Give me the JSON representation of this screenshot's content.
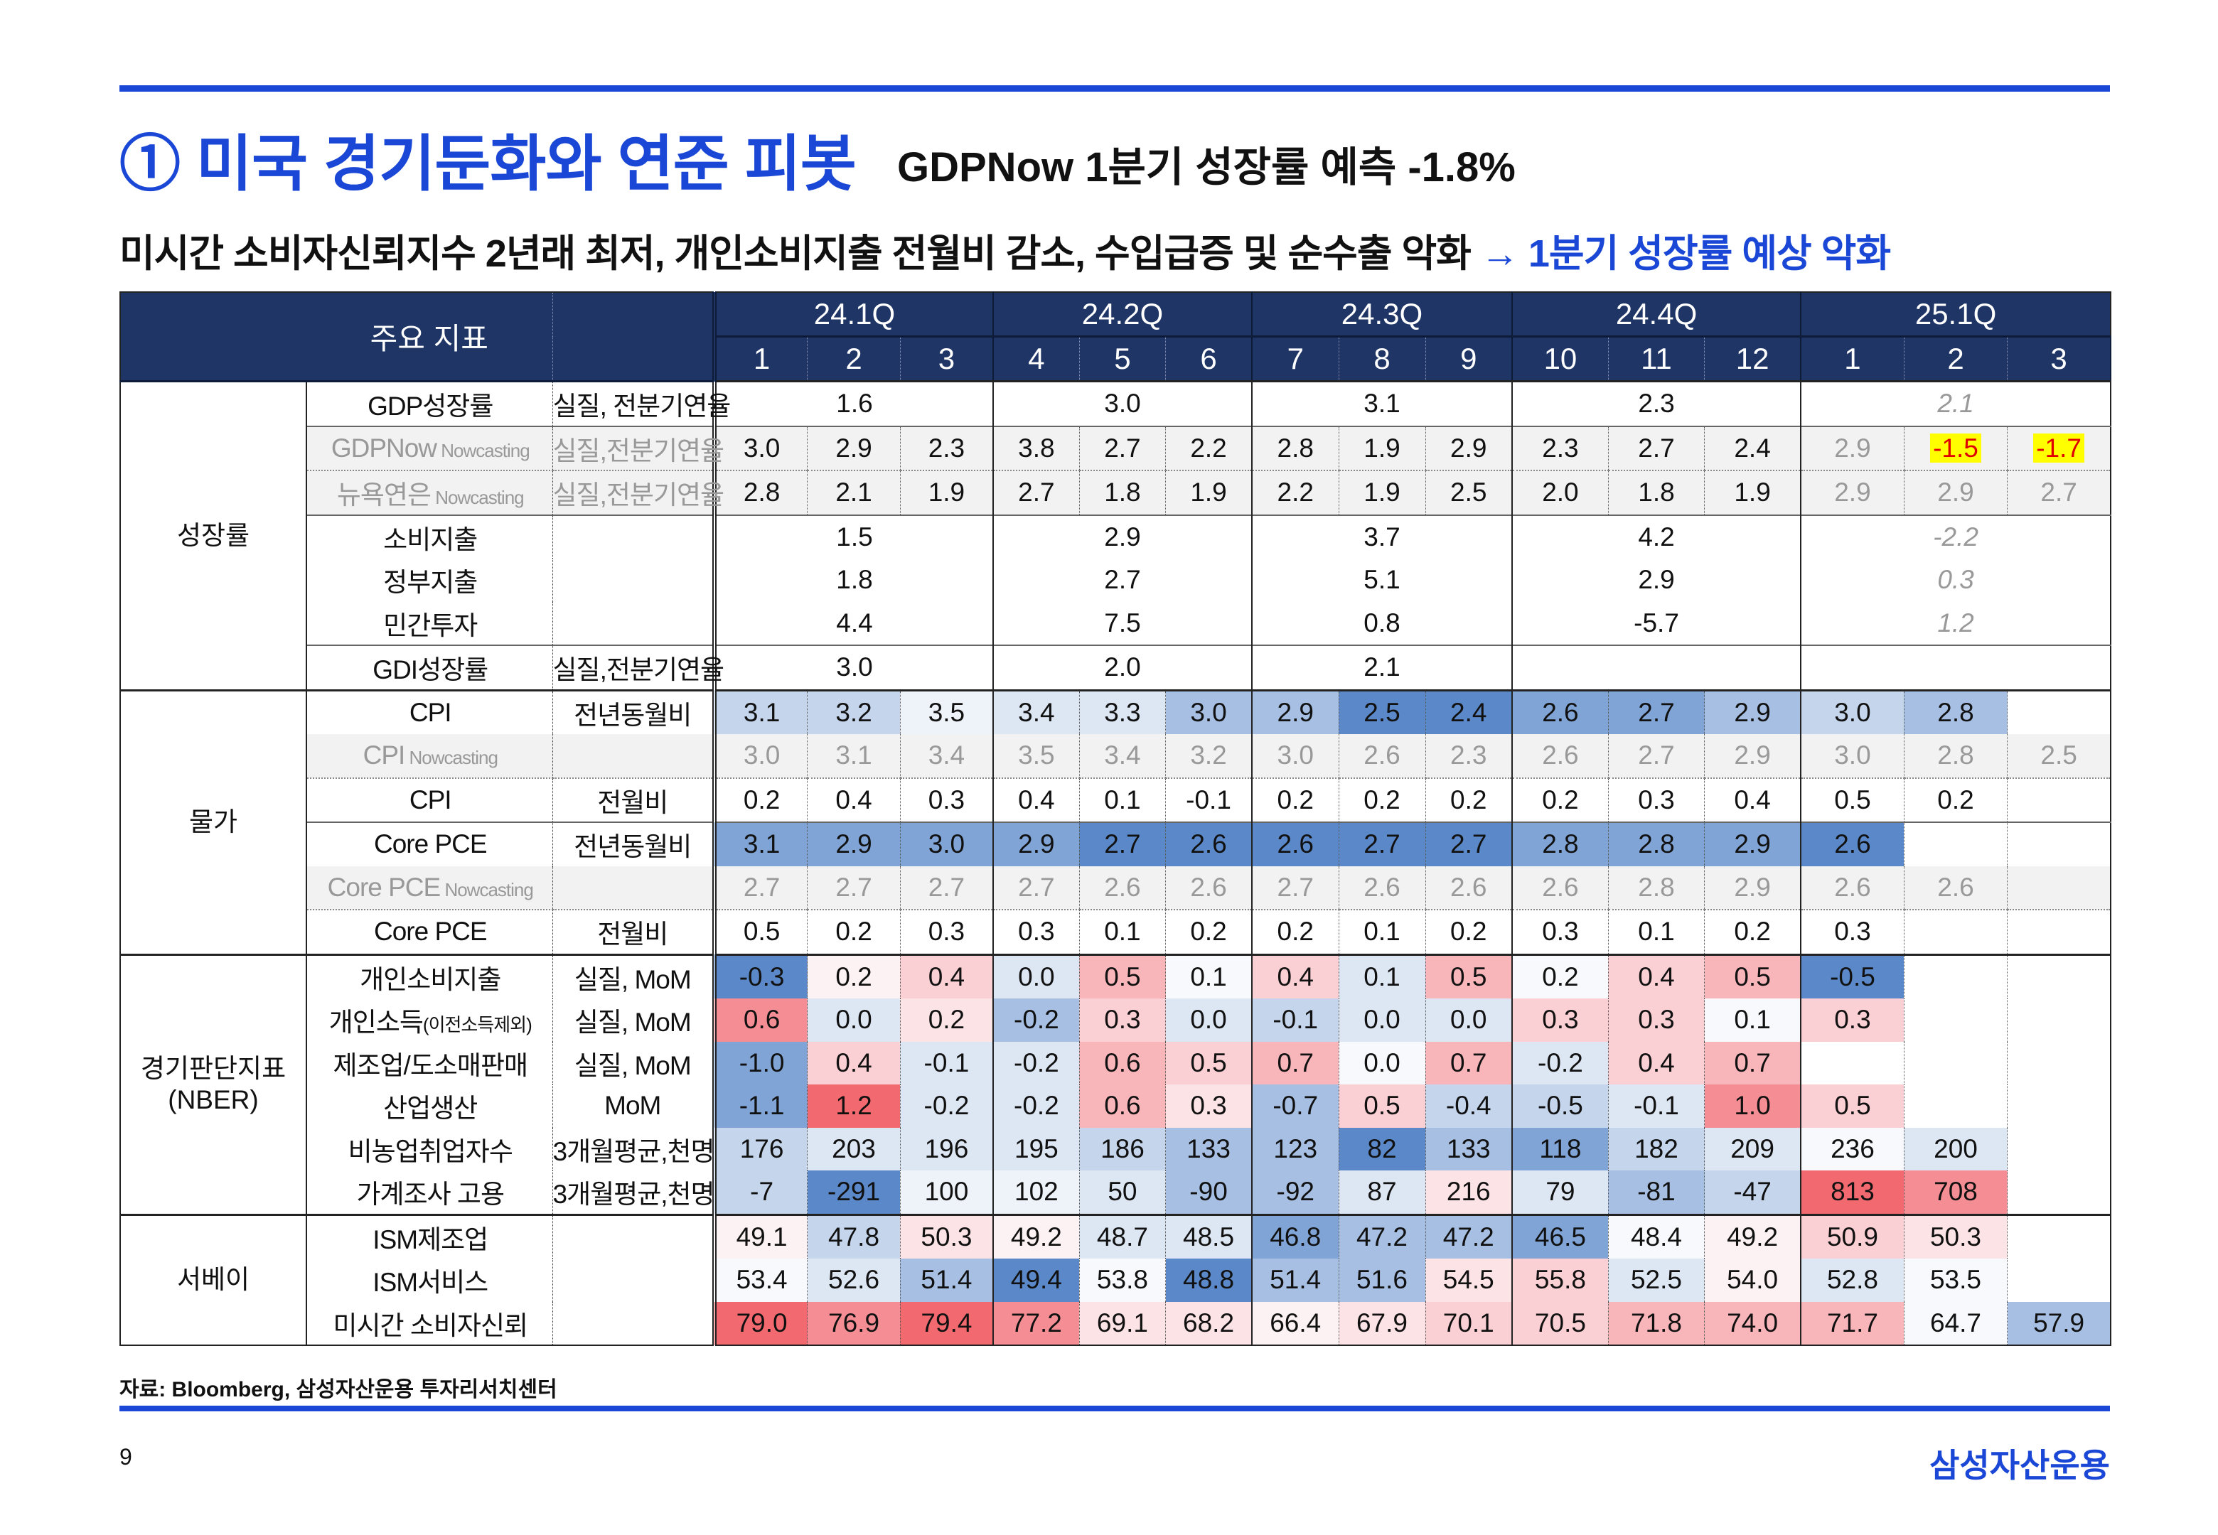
{
  "header": {
    "title": "① 미국 경기둔화와 연준 피봇",
    "subtitle": "GDPNow 1분기 성장률 예측 -1.8%",
    "headline_main": "미시간 소비자신뢰지수 2년래 최저, 개인소비지출 전월비 감소, 수입급증 및 순수출 악화 ",
    "headline_highlight": "→ 1분기 성장률 예상 악화"
  },
  "table": {
    "col_header": "주요 지표",
    "quarters": [
      "24.1Q",
      "24.2Q",
      "24.3Q",
      "24.4Q",
      "25.1Q"
    ],
    "months": [
      "1",
      "2",
      "3",
      "4",
      "5",
      "6",
      "7",
      "8",
      "9",
      "10",
      "11",
      "12",
      "1",
      "2",
      "3"
    ],
    "sections": [
      {
        "label": "성장률",
        "rows": [
          {
            "name": "GDP성장률",
            "unit": "실질, 전분기연율",
            "type": "quarterly",
            "values": [
              "1.6",
              "3.0",
              "3.1",
              "2.3",
              "2.1"
            ],
            "italic_last": true
          },
          {
            "name": "GDPNow",
            "name_small": " Nowcasting",
            "unit": "실질,전분기연율",
            "type": "monthly",
            "nowcast": true,
            "muted_from": 12,
            "values": [
              "3.0",
              "2.9",
              "2.3",
              "3.8",
              "2.7",
              "2.2",
              "2.8",
              "1.9",
              "2.9",
              "2.3",
              "2.7",
              "2.4",
              "2.9",
              "-1.5",
              "-1.7"
            ],
            "highlight": [
              13,
              14
            ]
          },
          {
            "name": "뉴욕연은",
            "name_small": " Nowcasting",
            "unit": "실질,전분기연율",
            "type": "monthly",
            "nowcast": true,
            "muted_from": 12,
            "values": [
              "2.8",
              "2.1",
              "1.9",
              "2.7",
              "1.8",
              "1.9",
              "2.2",
              "1.9",
              "2.5",
              "2.0",
              "1.8",
              "1.9",
              "2.9",
              "2.9",
              "2.7"
            ]
          },
          {
            "name": "소비지출",
            "unit": "",
            "type": "quarterly",
            "values": [
              "1.5",
              "2.9",
              "3.7",
              "4.2",
              "-2.2"
            ],
            "italic_last": true
          },
          {
            "name": "정부지출",
            "unit": "",
            "type": "quarterly",
            "values": [
              "1.8",
              "2.7",
              "5.1",
              "2.9",
              "0.3"
            ],
            "italic_last": true
          },
          {
            "name": "민간투자",
            "unit": "",
            "type": "quarterly",
            "values": [
              "4.4",
              "7.5",
              "0.8",
              "-5.7",
              "1.2"
            ],
            "italic_last": true
          },
          {
            "name": "GDI성장률",
            "unit": "실질,전분기연율",
            "type": "quarterly",
            "values": [
              "3.0",
              "2.0",
              "2.1",
              "",
              ""
            ]
          }
        ]
      },
      {
        "label": "물가",
        "rows": [
          {
            "name": "CPI",
            "unit": "전년동월비",
            "type": "monthly",
            "values": [
              "3.1",
              "3.2",
              "3.5",
              "3.4",
              "3.3",
              "3.0",
              "2.9",
              "2.5",
              "2.4",
              "2.6",
              "2.7",
              "2.9",
              "3.0",
              "2.8",
              ""
            ],
            "shades": [
              "b2",
              "b2",
              "b0",
              "b1",
              "b1",
              "b3",
              "b3",
              "b5",
              "b5",
              "b4",
              "b4",
              "b3",
              "b2",
              "b3",
              ""
            ]
          },
          {
            "name": "CPI",
            "name_small": " Nowcasting",
            "unit": "",
            "type": "monthly",
            "nowcast": true,
            "muted_from": 0,
            "values": [
              "3.0",
              "3.1",
              "3.4",
              "3.5",
              "3.4",
              "3.2",
              "3.0",
              "2.6",
              "2.3",
              "2.6",
              "2.7",
              "2.9",
              "3.0",
              "2.8",
              "2.5"
            ]
          },
          {
            "name": "CPI",
            "unit": "전월비",
            "type": "monthly",
            "values": [
              "0.2",
              "0.4",
              "0.3",
              "0.4",
              "0.1",
              "-0.1",
              "0.2",
              "0.2",
              "0.2",
              "0.2",
              "0.3",
              "0.4",
              "0.5",
              "0.2",
              ""
            ]
          },
          {
            "name": "Core PCE",
            "unit": "전년동월비",
            "type": "monthly",
            "values": [
              "3.1",
              "2.9",
              "3.0",
              "2.9",
              "2.7",
              "2.6",
              "2.6",
              "2.7",
              "2.7",
              "2.8",
              "2.8",
              "2.9",
              "2.6",
              "",
              ""
            ],
            "shades": [
              "b4",
              "b4",
              "b4",
              "b4",
              "b5",
              "b5",
              "b5",
              "b5",
              "b5",
              "b4",
              "b4",
              "b4",
              "b5",
              "",
              ""
            ]
          },
          {
            "name": "Core PCE",
            "name_small": " Nowcasting",
            "unit": "",
            "type": "monthly",
            "nowcast": true,
            "muted_from": 0,
            "values": [
              "2.7",
              "2.7",
              "2.7",
              "2.7",
              "2.6",
              "2.6",
              "2.7",
              "2.6",
              "2.6",
              "2.6",
              "2.8",
              "2.9",
              "2.6",
              "2.6",
              ""
            ]
          },
          {
            "name": "Core PCE",
            "unit": "전월비",
            "type": "monthly",
            "values": [
              "0.5",
              "0.2",
              "0.3",
              "0.3",
              "0.1",
              "0.2",
              "0.2",
              "0.1",
              "0.2",
              "0.3",
              "0.1",
              "0.2",
              "0.3",
              "",
              ""
            ]
          }
        ]
      },
      {
        "label": "경기판단지표",
        "label2": "(NBER)",
        "rows": [
          {
            "name": "개인소비지출",
            "unit": "실질, MoM",
            "type": "monthly",
            "values": [
              "-0.3",
              "0.2",
              "0.4",
              "0.0",
              "0.5",
              "0.1",
              "0.4",
              "0.1",
              "0.5",
              "0.2",
              "0.4",
              "0.5",
              "-0.5",
              "",
              ""
            ],
            "shades": [
              "b5",
              "r0",
              "r2",
              "b1",
              "r3",
              "w",
              "r2",
              "b1",
              "r3",
              "w",
              "r2",
              "r3",
              "b5",
              "",
              ""
            ]
          },
          {
            "name": "개인소득",
            "name_small": "(이전소득제외)",
            "unit": "실질, MoM",
            "type": "monthly",
            "values": [
              "0.6",
              "0.0",
              "0.2",
              "-0.2",
              "0.3",
              "0.0",
              "-0.1",
              "0.0",
              "0.0",
              "0.3",
              "0.3",
              "0.1",
              "0.3",
              "",
              ""
            ],
            "shades": [
              "r4",
              "b1",
              "r1",
              "b3",
              "r2",
              "b1",
              "b2",
              "b1",
              "b1",
              "r2",
              "r2",
              "w",
              "r2",
              "",
              ""
            ]
          },
          {
            "name": "제조업/도소매판매",
            "unit": "실질, MoM",
            "type": "monthly",
            "values": [
              "-1.0",
              "0.4",
              "-0.1",
              "-0.2",
              "0.6",
              "0.5",
              "0.7",
              "0.0",
              "0.7",
              "-0.2",
              "0.4",
              "0.7",
              "",
              "",
              ""
            ],
            "shades": [
              "b4",
              "r2",
              "b1",
              "b1",
              "r3",
              "r2",
              "r3",
              "w",
              "r3",
              "b1",
              "r2",
              "r3",
              "",
              "",
              ""
            ]
          },
          {
            "name": "산업생산",
            "unit": "MoM",
            "type": "monthly",
            "values": [
              "-1.1",
              "1.2",
              "-0.2",
              "-0.2",
              "0.6",
              "0.3",
              "-0.7",
              "0.5",
              "-0.4",
              "-0.5",
              "-0.1",
              "1.0",
              "0.5",
              "",
              ""
            ],
            "shades": [
              "b4",
              "r5",
              "b1",
              "b1",
              "r3",
              "r1",
              "b3",
              "r2",
              "b2",
              "b2",
              "b1",
              "r4",
              "r2",
              "",
              ""
            ]
          },
          {
            "name": "비농업취업자수",
            "unit": "3개월평균,천명",
            "type": "monthly",
            "values": [
              "176",
              "203",
              "196",
              "195",
              "186",
              "133",
              "123",
              "82",
              "133",
              "118",
              "182",
              "209",
              "236",
              "200",
              ""
            ],
            "shades": [
              "b2",
              "b1",
              "b1",
              "b1",
              "b2",
              "b3",
              "b3",
              "b5",
              "b3",
              "b4",
              "b2",
              "b1",
              "w",
              "b1",
              ""
            ]
          },
          {
            "name": "가계조사 고용",
            "unit": "3개월평균,천명",
            "type": "monthly",
            "values": [
              "-7",
              "-291",
              "100",
              "102",
              "50",
              "-90",
              "-92",
              "87",
              "216",
              "79",
              "-81",
              "-47",
              "813",
              "708",
              ""
            ],
            "shades": [
              "b2",
              "b5",
              "b0",
              "b0",
              "b1",
              "b3",
              "b3",
              "b1",
              "r1",
              "b1",
              "b3",
              "b2",
              "r5",
              "r4",
              ""
            ]
          }
        ]
      },
      {
        "label": "서베이",
        "rows": [
          {
            "name": "ISM제조업",
            "unit": "",
            "type": "monthly",
            "values": [
              "49.1",
              "47.8",
              "50.3",
              "49.2",
              "48.7",
              "48.5",
              "46.8",
              "47.2",
              "47.2",
              "46.5",
              "48.4",
              "49.2",
              "50.9",
              "50.3",
              ""
            ],
            "shades": [
              "r0",
              "b2",
              "r1",
              "r0",
              "b1",
              "b1",
              "b4",
              "b3",
              "b3",
              "b4",
              "w",
              "r0",
              "r2",
              "r1",
              ""
            ]
          },
          {
            "name": "ISM서비스",
            "unit": "",
            "type": "monthly",
            "values": [
              "53.4",
              "52.6",
              "51.4",
              "49.4",
              "53.8",
              "48.8",
              "51.4",
              "51.6",
              "54.5",
              "55.8",
              "52.5",
              "54.0",
              "52.8",
              "53.5",
              ""
            ],
            "shades": [
              "w",
              "b1",
              "b3",
              "b5",
              "w",
              "b5",
              "b3",
              "b3",
              "r1",
              "r2",
              "b1",
              "r0",
              "b1",
              "w",
              ""
            ]
          },
          {
            "name": "미시간 소비자신뢰",
            "unit": "",
            "type": "monthly",
            "values": [
              "79.0",
              "76.9",
              "79.4",
              "77.2",
              "69.1",
              "68.2",
              "66.4",
              "67.9",
              "70.1",
              "70.5",
              "71.8",
              "74.0",
              "71.7",
              "64.7",
              "57.9"
            ],
            "shades": [
              "r5",
              "r4",
              "r5",
              "r4",
              "r1",
              "r1",
              "r0",
              "r1",
              "r2",
              "r2",
              "r3",
              "r3",
              "r3",
              "w",
              "b3"
            ]
          }
        ]
      }
    ]
  },
  "footer": {
    "source": "자료: Bloomberg, 삼성자산운용 투자리서치센터",
    "page_number": "9",
    "logo_text": "삼성자산운용"
  }
}
